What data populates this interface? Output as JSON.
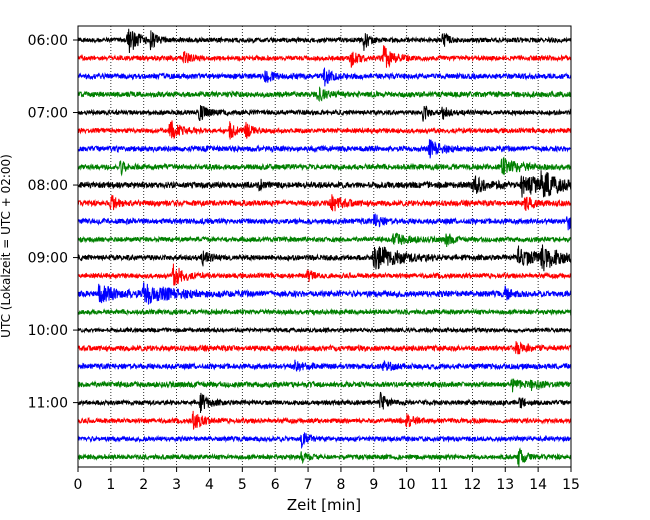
{
  "chart_data": {
    "type": "line",
    "subtype": "seismic-helicorder",
    "xlabel": "Zeit  [min]",
    "ylabel": "UTC (Lokalzeit = UTC + 02:00)",
    "xlim": [
      0,
      15
    ],
    "x_ticks": [
      0,
      1,
      2,
      3,
      4,
      5,
      6,
      7,
      8,
      9,
      10,
      11,
      12,
      13,
      14,
      15
    ],
    "grid": "vertical dotted at each minute",
    "row_interval_minutes": 15,
    "row_start_times": [
      "06:00",
      "06:15",
      "06:30",
      "06:45",
      "07:00",
      "07:15",
      "07:30",
      "07:45",
      "08:00",
      "08:15",
      "08:30",
      "08:45",
      "09:00",
      "09:15",
      "09:30",
      "09:45",
      "10:00",
      "10:15",
      "10:30",
      "10:45",
      "11:00",
      "11:15",
      "11:30",
      "11:45"
    ],
    "y_tick_labels": [
      "06:00",
      "07:00",
      "08:00",
      "09:00",
      "10:00",
      "11:00"
    ],
    "color_cycle": [
      "#000000",
      "#ff0000",
      "#0000ff",
      "#008000"
    ],
    "series": [
      {
        "start": "06:00",
        "color": "#000000",
        "noise": 0.35,
        "events": [
          {
            "t": 1.5,
            "amp": 2.2,
            "dur": 0.3
          },
          {
            "t": 2.2,
            "amp": 1.3,
            "dur": 0.15
          },
          {
            "t": 8.7,
            "amp": 1.5,
            "dur": 0.15
          },
          {
            "t": 11.1,
            "amp": 1.3,
            "dur": 0.15
          }
        ]
      },
      {
        "start": "06:15",
        "color": "#ff0000",
        "noise": 0.35,
        "events": [
          {
            "t": 3.2,
            "amp": 1.0,
            "dur": 0.2
          },
          {
            "t": 8.3,
            "amp": 1.2,
            "dur": 0.2
          },
          {
            "t": 9.3,
            "amp": 1.8,
            "dur": 0.25
          }
        ]
      },
      {
        "start": "06:30",
        "color": "#0000ff",
        "noise": 0.4,
        "events": [
          {
            "t": 5.7,
            "amp": 1.0,
            "dur": 0.2
          },
          {
            "t": 7.5,
            "amp": 1.4,
            "dur": 0.2
          }
        ]
      },
      {
        "start": "06:45",
        "color": "#008000",
        "noise": 0.4,
        "events": [
          {
            "t": 7.3,
            "amp": 0.8,
            "dur": 0.3
          }
        ]
      },
      {
        "start": "07:00",
        "color": "#000000",
        "noise": 0.35,
        "events": [
          {
            "t": 3.7,
            "amp": 1.2,
            "dur": 0.2
          },
          {
            "t": 10.5,
            "amp": 1.3,
            "dur": 0.15
          },
          {
            "t": 11.1,
            "amp": 1.0,
            "dur": 0.15
          }
        ]
      },
      {
        "start": "07:15",
        "color": "#ff0000",
        "noise": 0.35,
        "events": [
          {
            "t": 2.8,
            "amp": 1.6,
            "dur": 0.3
          },
          {
            "t": 4.6,
            "amp": 1.2,
            "dur": 0.2
          },
          {
            "t": 5.1,
            "amp": 1.0,
            "dur": 0.2
          }
        ]
      },
      {
        "start": "07:30",
        "color": "#0000ff",
        "noise": 0.4,
        "events": [
          {
            "t": 10.7,
            "amp": 1.2,
            "dur": 0.3
          }
        ]
      },
      {
        "start": "07:45",
        "color": "#008000",
        "noise": 0.4,
        "events": [
          {
            "t": 1.3,
            "amp": 1.0,
            "dur": 0.15
          },
          {
            "t": 12.9,
            "amp": 1.2,
            "dur": 0.5
          }
        ]
      },
      {
        "start": "08:00",
        "color": "#000000",
        "noise": 0.45,
        "events": [
          {
            "t": 5.5,
            "amp": 0.9,
            "dur": 0.15
          },
          {
            "t": 12.0,
            "amp": 1.3,
            "dur": 0.4
          },
          {
            "t": 13.5,
            "amp": 1.8,
            "dur": 0.5
          },
          {
            "t": 14.1,
            "amp": 1.7,
            "dur": 0.5
          }
        ]
      },
      {
        "start": "08:15",
        "color": "#ff0000",
        "noise": 0.4,
        "events": [
          {
            "t": 1.0,
            "amp": 1.2,
            "dur": 0.2
          },
          {
            "t": 7.7,
            "amp": 1.3,
            "dur": 0.3
          },
          {
            "t": 13.6,
            "amp": 1.1,
            "dur": 0.2
          }
        ]
      },
      {
        "start": "08:30",
        "color": "#0000ff",
        "noise": 0.4,
        "events": [
          {
            "t": 9.0,
            "amp": 1.0,
            "dur": 0.2
          },
          {
            "t": 14.9,
            "amp": 1.2,
            "dur": 0.2
          }
        ]
      },
      {
        "start": "08:45",
        "color": "#008000",
        "noise": 0.35,
        "events": [
          {
            "t": 9.6,
            "amp": 1.0,
            "dur": 0.4
          },
          {
            "t": 11.2,
            "amp": 1.0,
            "dur": 0.15
          }
        ]
      },
      {
        "start": "09:00",
        "color": "#000000",
        "noise": 0.4,
        "events": [
          {
            "t": 3.8,
            "amp": 1.0,
            "dur": 0.2
          },
          {
            "t": 9.0,
            "amp": 2.0,
            "dur": 0.7
          },
          {
            "t": 13.4,
            "amp": 1.7,
            "dur": 0.4
          },
          {
            "t": 14.1,
            "amp": 1.8,
            "dur": 0.5
          }
        ]
      },
      {
        "start": "09:15",
        "color": "#ff0000",
        "noise": 0.35,
        "events": [
          {
            "t": 2.9,
            "amp": 1.6,
            "dur": 0.3
          },
          {
            "t": 7.0,
            "amp": 0.9,
            "dur": 0.15
          }
        ]
      },
      {
        "start": "09:30",
        "color": "#0000ff",
        "noise": 0.45,
        "events": [
          {
            "t": 0.6,
            "amp": 1.2,
            "dur": 0.6
          },
          {
            "t": 2.0,
            "amp": 1.5,
            "dur": 0.7
          },
          {
            "t": 13.0,
            "amp": 0.9,
            "dur": 0.15
          }
        ]
      },
      {
        "start": "09:45",
        "color": "#008000",
        "noise": 0.35,
        "events": []
      },
      {
        "start": "10:00",
        "color": "#000000",
        "noise": 0.3,
        "events": []
      },
      {
        "start": "10:15",
        "color": "#ff0000",
        "noise": 0.4,
        "events": [
          {
            "t": 13.3,
            "amp": 1.0,
            "dur": 0.3
          }
        ]
      },
      {
        "start": "10:30",
        "color": "#0000ff",
        "noise": 0.4,
        "events": [
          {
            "t": 6.6,
            "amp": 0.9,
            "dur": 0.2
          },
          {
            "t": 9.3,
            "amp": 0.9,
            "dur": 0.2
          }
        ]
      },
      {
        "start": "10:45",
        "color": "#008000",
        "noise": 0.4,
        "events": [
          {
            "t": 13.2,
            "amp": 1.0,
            "dur": 0.2
          },
          {
            "t": 13.8,
            "amp": 0.9,
            "dur": 0.2
          }
        ]
      },
      {
        "start": "11:00",
        "color": "#000000",
        "noise": 0.35,
        "events": [
          {
            "t": 3.7,
            "amp": 1.4,
            "dur": 0.25
          },
          {
            "t": 9.2,
            "amp": 1.3,
            "dur": 0.2
          },
          {
            "t": 13.4,
            "amp": 1.0,
            "dur": 0.15
          }
        ]
      },
      {
        "start": "11:15",
        "color": "#ff0000",
        "noise": 0.35,
        "events": [
          {
            "t": 3.5,
            "amp": 1.5,
            "dur": 0.25
          },
          {
            "t": 10.0,
            "amp": 1.0,
            "dur": 0.2
          }
        ]
      },
      {
        "start": "11:30",
        "color": "#0000ff",
        "noise": 0.35,
        "events": [
          {
            "t": 6.8,
            "amp": 1.1,
            "dur": 0.2
          }
        ]
      },
      {
        "start": "11:45",
        "color": "#008000",
        "noise": 0.35,
        "events": [
          {
            "t": 6.8,
            "amp": 1.0,
            "dur": 0.15
          },
          {
            "t": 13.4,
            "amp": 1.3,
            "dur": 0.2
          }
        ]
      }
    ]
  }
}
